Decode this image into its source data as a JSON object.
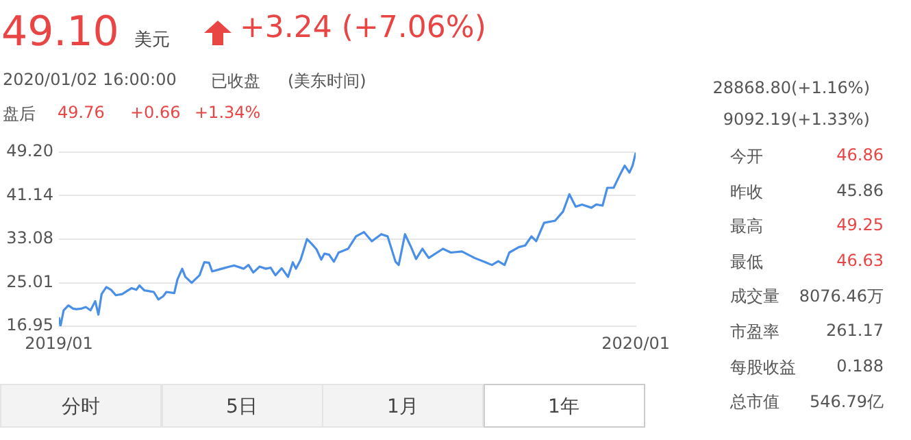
{
  "chart_data": {
    "type": "line",
    "annotations": [
      "49.10",
      "美元",
      "+3.24 (+7.06%)",
      "2020/01/02 16:00:00",
      "已收盘",
      "(美东时间)",
      "盘后",
      "49.76",
      "+0.66",
      "+1.34%",
      "28868.80(+1.16%)",
      "9092.19(+1.33%)",
      "今开",
      "46.86",
      "昨收",
      "45.86",
      "最高",
      "49.25",
      "最低",
      "46.63",
      "成交量",
      "8076.46万",
      "市盈率",
      "261.17",
      "每股收益",
      "0.188",
      "总市值",
      "546.79亿",
      "分时",
      "5日",
      "1月",
      "1年"
    ],
    "x": [
      "2019-01-02",
      "2019-01-03",
      "2019-01-05",
      "2019-01-08",
      "2019-01-11",
      "2019-01-13",
      "2019-01-16",
      "2019-01-19",
      "2019-01-22",
      "2019-01-25",
      "2019-01-27",
      "2019-01-29",
      "2019-02-01",
      "2019-02-04",
      "2019-02-07",
      "2019-02-11",
      "2019-02-17",
      "2019-02-20",
      "2019-02-22",
      "2019-02-25",
      "2019-03-03",
      "2019-03-06",
      "2019-03-09",
      "2019-03-11",
      "2019-03-16",
      "2019-03-18",
      "2019-03-21",
      "2019-03-23",
      "2019-03-27",
      "2019-04-01",
      "2019-04-04",
      "2019-04-07",
      "2019-04-09",
      "2019-04-15",
      "2019-04-20",
      "2019-04-23",
      "2019-04-29",
      "2019-05-02",
      "2019-05-05",
      "2019-05-09",
      "2019-05-13",
      "2019-05-16",
      "2019-05-19",
      "2019-05-23",
      "2019-05-27",
      "2019-05-30",
      "2019-06-01",
      "2019-06-04",
      "2019-06-08",
      "2019-06-11",
      "2019-06-14",
      "2019-06-17",
      "2019-06-19",
      "2019-06-22",
      "2019-06-25",
      "2019-06-28",
      "2019-07-04",
      "2019-07-09",
      "2019-07-14",
      "2019-07-19",
      "2019-07-25",
      "2019-07-29",
      "2019-08-03",
      "2019-08-05",
      "2019-08-09",
      "2019-08-13",
      "2019-08-16",
      "2019-08-20",
      "2019-08-24",
      "2019-09-02",
      "2019-09-07",
      "2019-09-14",
      "2019-09-22",
      "2019-09-29",
      "2019-10-03",
      "2019-10-07",
      "2019-10-11",
      "2019-10-14",
      "2019-10-20",
      "2019-10-24",
      "2019-10-28",
      "2019-10-31",
      "2019-11-05",
      "2019-11-12",
      "2019-11-17",
      "2019-11-21",
      "2019-11-25",
      "2019-11-29",
      "2019-12-05",
      "2019-12-08",
      "2019-12-12",
      "2019-12-15",
      "2019-12-19",
      "2019-12-23",
      "2019-12-26",
      "2019-12-29",
      "2019-12-31",
      "2020-01-02"
    ],
    "series": [
      {
        "color": "#4a8fe7",
        "values": [
          18.6,
          17.0,
          19.9,
          20.8,
          20.2,
          20.1,
          20.2,
          20.5,
          19.9,
          21.6,
          19.1,
          22.9,
          24.2,
          23.7,
          22.7,
          22.9,
          24.0,
          23.7,
          24.5,
          23.6,
          23.3,
          21.9,
          22.5,
          23.3,
          23.1,
          25.6,
          27.6,
          26.1,
          25.0,
          26.4,
          28.8,
          28.7,
          27.1,
          27.6,
          28.0,
          28.2,
          27.6,
          28.3,
          26.9,
          28.0,
          27.6,
          27.8,
          26.4,
          27.7,
          26.1,
          28.8,
          27.6,
          29.3,
          33.1,
          32.2,
          31.2,
          29.3,
          30.4,
          30.2,
          28.9,
          30.6,
          31.3,
          33.6,
          34.4,
          32.7,
          34.0,
          33.6,
          28.9,
          28.3,
          34.0,
          31.5,
          29.4,
          31.3,
          29.6,
          31.3,
          30.6,
          30.8,
          29.6,
          28.8,
          28.3,
          29.0,
          28.3,
          30.6,
          31.6,
          31.9,
          33.6,
          32.7,
          36.1,
          36.5,
          38.2,
          41.4,
          39.1,
          39.5,
          38.9,
          39.5,
          39.3,
          42.6,
          42.6,
          45.0,
          46.7,
          45.4,
          46.7,
          49.1
        ]
      }
    ],
    "xlim": [
      "2019-01-02",
      "2020-01-02"
    ],
    "xticks": [
      {
        "value": "2019-01-02",
        "label": "2019/01"
      },
      {
        "value": "2020-01-02",
        "label": "2020/01"
      }
    ],
    "ylim": [
      16.95,
      49.2
    ],
    "yticks": [
      {
        "value": 16.95,
        "label": "16.95"
      },
      {
        "value": 25.01,
        "label": "25.01"
      },
      {
        "value": 33.08,
        "label": "33.08"
      },
      {
        "value": 41.14,
        "label": "41.14"
      },
      {
        "value": 49.2,
        "label": "49.20"
      }
    ],
    "grid": "y",
    "legend": false,
    "marker": "none",
    "line_style": "solid"
  }
}
